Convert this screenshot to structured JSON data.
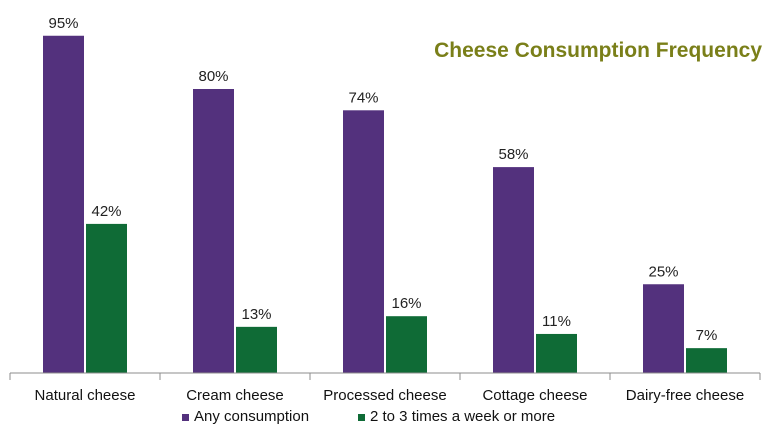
{
  "chart_data": {
    "type": "bar",
    "title": "Cheese Consumption Frequency",
    "categories": [
      "Natural cheese",
      "Cream cheese",
      "Processed cheese",
      "Cottage cheese",
      "Dairy-free cheese"
    ],
    "series": [
      {
        "name": "Any consumption",
        "values": [
          95,
          80,
          74,
          58,
          25
        ],
        "labels": [
          "95%",
          "80%",
          "74%",
          "58%",
          "25%"
        ]
      },
      {
        "name": "2 to 3 times a week or more",
        "values": [
          42,
          13,
          16,
          11,
          7
        ],
        "labels": [
          "42%",
          "13%",
          "16%",
          "11%",
          "7%"
        ]
      }
    ],
    "ylim": [
      0,
      100
    ],
    "grid": false,
    "legend_position": "bottom",
    "colors": {
      "series_1": "#53317d",
      "series_2": "#0f6b36",
      "title": "#7a7f19",
      "axis": "#8c8c8c"
    }
  }
}
